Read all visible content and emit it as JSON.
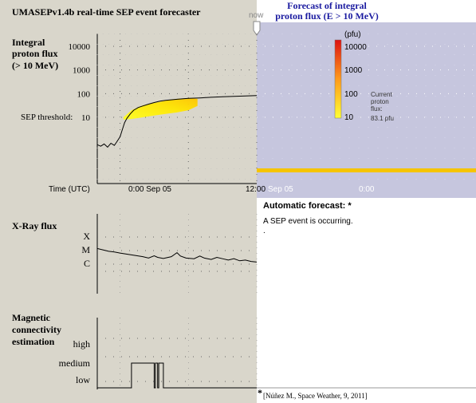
{
  "app_title": "UMASEPv1.4b  real-time SEP event forecaster",
  "now_label": "now",
  "colors": {
    "left_panel_bg": "#d9d6cb",
    "forecast_bg": "#c6c6de",
    "forecast_line": "#f5c400",
    "title_blue": "#1a1aa0"
  },
  "proton_panel": {
    "title": [
      "Integral",
      "proton flux",
      "(> 10 MeV)"
    ],
    "ylabels": [
      "10000",
      "1000",
      "100",
      "10"
    ],
    "threshold_label": "SEP threshold:",
    "x_axis_title": "Time (UTC)",
    "x_labels_left": [
      "0:00  Sep  05",
      "12:00"
    ],
    "x_labels_right": [
      "Sep  05",
      "0:00"
    ]
  },
  "forecast_panel": {
    "title_line1": "Forecast of integral",
    "title_line2": "proton flux (E > 10 MeV)",
    "colorbar_unit": "(pfu)",
    "colorbar_labels": [
      "10000",
      "1000",
      "100",
      "10"
    ],
    "current_label": [
      "Current",
      "proton",
      "flux:",
      "83.1 pfu"
    ]
  },
  "xray_panel": {
    "title": "X-Ray flux",
    "ylabels": [
      "X",
      "M",
      "C"
    ]
  },
  "magnetic_panel": {
    "title": [
      "Magnetic",
      "connectivity",
      "estimation"
    ],
    "ylabels": [
      "high",
      "medium",
      "low"
    ]
  },
  "automatic_forecast": {
    "title": "Automatic forecast: *",
    "text": "A SEP event is occurring.",
    "text2": "."
  },
  "reference": {
    "marker": "*",
    "text": "[Núñez M., Space Weather, 9, 2011]"
  },
  "chart_data": [
    {
      "type": "line",
      "title": "Integral proton flux (> 10 MeV)",
      "xlabel": "Time (UTC)",
      "ylabel": "",
      "y_scale": "log",
      "ylim": [
        0.3,
        25000
      ],
      "x_unit": "hours relative to 0:00 Sep 05",
      "xlim": [
        -2,
        12
      ],
      "threshold": 10,
      "grid": true,
      "series": [
        {
          "values": [
            [
              -2.0,
              0.7
            ],
            [
              -1.7,
              0.6
            ],
            [
              -1.4,
              0.75
            ],
            [
              -1.1,
              0.55
            ],
            [
              -0.8,
              0.8
            ],
            [
              -0.5,
              0.65
            ],
            [
              -0.3,
              0.9
            ],
            [
              0.0,
              1.5
            ],
            [
              0.2,
              3
            ],
            [
              0.4,
              6
            ],
            [
              0.6,
              9
            ],
            [
              0.9,
              14
            ],
            [
              1.2,
              20
            ],
            [
              1.6,
              26
            ],
            [
              2.0,
              30
            ],
            [
              2.5,
              36
            ],
            [
              3.0,
              42
            ],
            [
              3.5,
              48
            ],
            [
              4.0,
              52
            ],
            [
              5.0,
              58
            ],
            [
              6.0,
              63
            ],
            [
              7.0,
              66
            ],
            [
              8.0,
              70
            ],
            [
              9.0,
              74
            ],
            [
              10.0,
              77
            ],
            [
              11.0,
              80
            ],
            [
              12.0,
              83.1
            ]
          ]
        }
      ],
      "forecast_band": {
        "x": [
          0.3,
          1.0,
          2.0,
          3.0,
          4.0,
          5.0,
          6.0,
          6.8
        ],
        "lower": [
          8,
          8.5,
          10,
          12,
          14,
          16,
          20,
          30
        ],
        "upper": [
          10,
          20,
          32,
          40,
          50,
          60,
          65,
          60
        ]
      }
    },
    {
      "type": "line",
      "title": "X-Ray flux",
      "y_scale": "categorical-log",
      "ylim_labels": [
        "C",
        "M",
        "X"
      ],
      "x_unit": "hours relative to 0:00 Sep 05",
      "xlim": [
        -2,
        12
      ],
      "series": [
        {
          "values": [
            [
              -2.0,
              1.15
            ],
            [
              -1.5,
              1.05
            ],
            [
              -1.0,
              0.95
            ],
            [
              -0.5,
              0.9
            ],
            [
              0.0,
              0.82
            ],
            [
              0.5,
              0.75
            ],
            [
              1.0,
              0.68
            ],
            [
              1.5,
              0.62
            ],
            [
              2.0,
              0.55
            ],
            [
              2.5,
              0.45
            ],
            [
              3.0,
              0.62
            ],
            [
              3.3,
              0.5
            ],
            [
              3.8,
              0.42
            ],
            [
              4.5,
              0.55
            ],
            [
              5.0,
              0.85
            ],
            [
              5.3,
              0.6
            ],
            [
              5.8,
              0.45
            ],
            [
              6.5,
              0.4
            ],
            [
              7.0,
              0.6
            ],
            [
              7.4,
              0.45
            ],
            [
              8.0,
              0.35
            ],
            [
              8.5,
              0.5
            ],
            [
              9.0,
              0.4
            ],
            [
              9.5,
              0.3
            ],
            [
              10.0,
              0.4
            ],
            [
              10.5,
              0.25
            ],
            [
              11.0,
              0.3
            ],
            [
              11.5,
              0.2
            ],
            [
              12.0,
              0.15
            ]
          ]
        }
      ]
    },
    {
      "type": "line",
      "title": "Magnetic connectivity estimation",
      "y_scale": "categorical",
      "categories_y": [
        "low",
        "medium",
        "high"
      ],
      "x_unit": "hours relative to 0:00 Sep 05",
      "xlim": [
        -2,
        12
      ],
      "series": [
        {
          "values": [
            [
              -2.0,
              0
            ],
            [
              1.0,
              0
            ],
            [
              1.0,
              1
            ],
            [
              3.0,
              1
            ],
            [
              3.0,
              0
            ],
            [
              3.1,
              0
            ],
            [
              3.1,
              1
            ],
            [
              3.3,
              1
            ],
            [
              3.3,
              0
            ],
            [
              3.4,
              0
            ],
            [
              3.4,
              1
            ],
            [
              3.8,
              1
            ],
            [
              3.8,
              0
            ],
            [
              12.0,
              0
            ]
          ]
        }
      ]
    }
  ]
}
